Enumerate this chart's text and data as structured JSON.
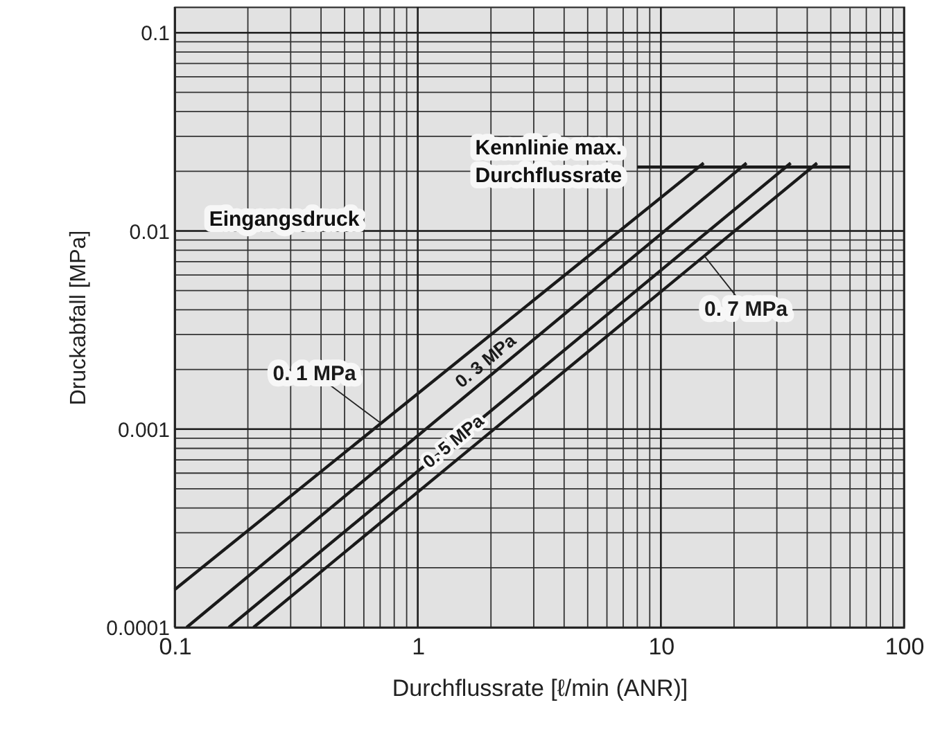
{
  "chart_data": {
    "type": "line",
    "xlabel": "Durchflussrate [ℓ/min (ANR)]",
    "ylabel": "Druckabfall   [MPa]",
    "log": "xy",
    "grid": true,
    "xlim": [
      0.1,
      100
    ],
    "ylim": [
      0.0001,
      0.135
    ],
    "xticks": [
      0.1,
      1,
      10,
      100
    ],
    "yticks": [
      0.0001,
      0.001,
      0.01,
      0.1
    ],
    "line_style": "solid",
    "marker": "none",
    "series": [
      {
        "name": "0. 1 MPa",
        "color": "#1a1a1a",
        "x": [
          0.1,
          15.0
        ],
        "values": [
          0.000155,
          0.022
        ]
      },
      {
        "name": "0. 3 MPa",
        "color": "#1a1a1a",
        "x": [
          0.112,
          22.5
        ],
        "values": [
          0.0001,
          0.022
        ]
      },
      {
        "name": "0. 5 MPa",
        "color": "#1a1a1a",
        "x": [
          0.167,
          34.2
        ],
        "values": [
          0.0001,
          0.022
        ]
      },
      {
        "name": "0. 7 MPa",
        "color": "#1a1a1a",
        "x": [
          0.211,
          43.9
        ],
        "values": [
          0.0001,
          0.022
        ]
      },
      {
        "color": "#1a1a1a",
        "x": [
          8.0,
          60
        ],
        "values": [
          0.021,
          0.021
        ]
      }
    ],
    "annotations": [
      "Eingangsdruck",
      {
        "text": "Kennlinie max.\nDurchflussrate",
        "x": 8.0,
        "y": 0.021
      }
    ]
  }
}
